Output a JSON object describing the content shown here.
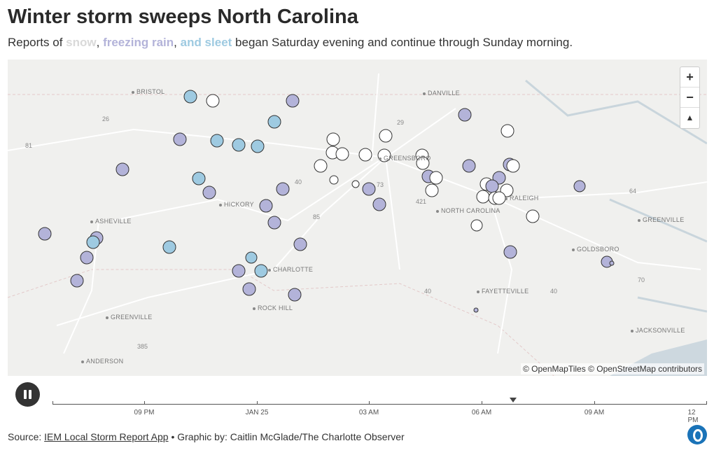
{
  "header": {
    "title": "Winter storm sweeps North Carolina",
    "subtitle_prefix": "Reports of ",
    "snow": "snow",
    "sep1": ", ",
    "freezing_rain": "freezing rain",
    "sep2": ", ",
    "sleet": "and sleet",
    "subtitle_suffix": " began Saturday evening and continue through Sunday morning."
  },
  "colors": {
    "snow": "#ffffff",
    "freezing_rain": "#b3b3d9",
    "sleet": "#9ecae1",
    "map_bg": "#f0f0ee"
  },
  "map": {
    "zoom_in": "+",
    "zoom_out": "−",
    "compass": "▲",
    "attribution": "© OpenMapTiles © OpenStreetMap contributors",
    "places": [
      "BRISTOL",
      "DANVILLE",
      "ASHEVILLE",
      "HICKORY",
      "GREENSBORO",
      "NORTH CAROLINA",
      "RALEIGH",
      "GREENVILLE",
      "GOLDSBORO",
      "CHARLOTTE",
      "ROCK HILL",
      "FAYETTEVILLE",
      "GREENVILLE",
      "ANDERSON",
      "JACKSONVILLE"
    ],
    "roads": [
      "26",
      "81",
      "40",
      "29",
      "85",
      "73",
      "421",
      "40",
      "64",
      "70",
      "40",
      "385"
    ]
  },
  "timeline": {
    "play_state": "pause-icon",
    "ticks": [
      "09 PM",
      "JAN 25",
      "03 AM",
      "06 AM",
      "09 AM",
      "12 PM"
    ],
    "current_position": 0.705
  },
  "footer": {
    "source_label": "Source: ",
    "source_link": "IEM Local Storm Report App",
    "credit": " • Graphic by: Caitlin McGlade/The Charlotte Observer"
  }
}
